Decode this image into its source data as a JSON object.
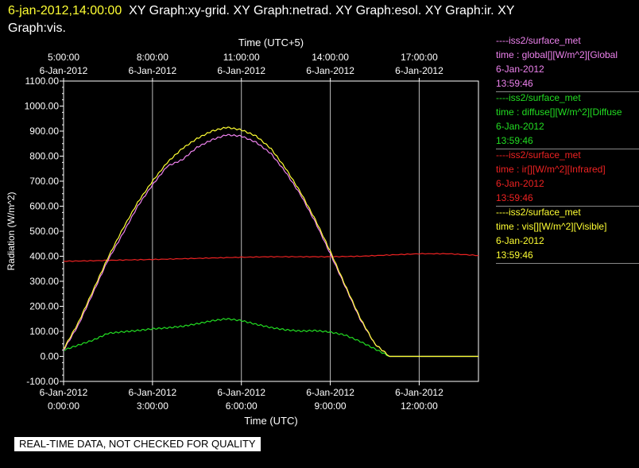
{
  "header": {
    "timestamp": "6-jan-2012,14:00:00",
    "graphs_line1": "XY Graph:xy-grid.  XY Graph:netrad.  XY Graph:esol.  XY Graph:ir.  XY",
    "graphs_line2": "Graph:vis."
  },
  "legend": [
    {
      "source": "----iss2/surface_met",
      "field": "time : global[][W/m^2][Global",
      "date": "6-Jan-2012",
      "time": "13:59:46",
      "color": "#ee82ee"
    },
    {
      "source": "----iss2/surface_met",
      "field": "time : diffuse[][W/m^2][Diffuse",
      "date": "6-Jan-2012",
      "time": "13:59:46",
      "color": "#22dd22"
    },
    {
      "source": "----iss2/surface_met",
      "field": "time : ir[][W/m^2][Infrared]",
      "date": "6-Jan-2012",
      "time": "13:59:46",
      "color": "#ee2222"
    },
    {
      "source": "----iss2/surface_met",
      "field": "time : vis[][W/m^2][Visible]",
      "date": "6-Jan-2012",
      "time": "13:59:46",
      "color": "#ffff33"
    }
  ],
  "banner": "REAL-TIME DATA, NOT CHECKED FOR QUALITY",
  "chart_data": {
    "type": "line",
    "ylabel": "Radiation (W/m^2)",
    "xlabel": "Time (UTC)",
    "top_xlabel": "Time (UTC+5)",
    "ylim": [
      -100,
      1100
    ],
    "y_ticks": [
      -100,
      0,
      100,
      200,
      300,
      400,
      500,
      600,
      700,
      800,
      900,
      1000,
      1100
    ],
    "y_tick_labels": [
      "-100.00",
      "0.00",
      "100.00",
      "200.00",
      "300.00",
      "400.00",
      "500.00",
      "600.00",
      "700.00",
      "800.00",
      "900.00",
      "1000.00",
      "1100.00"
    ],
    "xlim_hours_utc": [
      0,
      14
    ],
    "bottom_ticks": [
      {
        "h": 0,
        "date": "6-Jan-2012",
        "time": "0:00:00"
      },
      {
        "h": 3,
        "date": "6-Jan-2012",
        "time": "3:00:00"
      },
      {
        "h": 6,
        "date": "6-Jan-2012",
        "time": "6:00:00"
      },
      {
        "h": 9,
        "date": "6-Jan-2012",
        "time": "9:00:00"
      },
      {
        "h": 12,
        "date": "6-Jan-2012",
        "time": "12:00:00"
      }
    ],
    "top_ticks": [
      {
        "h": 0,
        "time": "5:00:00",
        "date": "6-Jan-2012"
      },
      {
        "h": 3,
        "time": "8:00:00",
        "date": "6-Jan-2012"
      },
      {
        "h": 6,
        "time": "11:00:00",
        "date": "6-Jan-2012"
      },
      {
        "h": 9,
        "time": "14:00:00",
        "date": "6-Jan-2012"
      },
      {
        "h": 12,
        "time": "17:00:00",
        "date": "6-Jan-2012"
      }
    ],
    "grid": "vertical",
    "series": [
      {
        "name": "global",
        "color": "#ee82ee",
        "x": [
          0,
          0.5,
          1,
          1.5,
          2,
          2.5,
          3,
          3.5,
          4,
          4.5,
          5,
          5.5,
          6,
          6.5,
          7,
          7.5,
          8,
          8.5,
          9,
          9.5,
          10,
          10.5,
          11,
          11.5,
          12,
          12.5,
          13,
          13.5,
          14
        ],
        "y": [
          25,
          125,
          255,
          385,
          490,
          600,
          685,
          760,
          785,
          835,
          865,
          885,
          880,
          855,
          810,
          735,
          645,
          535,
          410,
          280,
          150,
          50,
          0,
          0,
          0,
          0,
          0,
          0,
          0
        ]
      },
      {
        "name": "vis",
        "color": "#ffff33",
        "x": [
          0,
          0.5,
          1,
          1.5,
          2,
          2.5,
          3,
          3.5,
          4,
          4.5,
          5,
          5.5,
          6,
          6.5,
          7,
          7.5,
          8,
          8.5,
          9,
          9.5,
          10,
          10.5,
          11,
          11.5,
          12,
          12.5,
          13,
          13.5,
          14
        ],
        "y": [
          30,
          135,
          265,
          395,
          510,
          615,
          700,
          775,
          830,
          870,
          900,
          915,
          905,
          880,
          830,
          750,
          655,
          545,
          420,
          285,
          155,
          50,
          0,
          0,
          0,
          0,
          0,
          0,
          0
        ]
      },
      {
        "name": "ir",
        "color": "#ee2222",
        "x": [
          0,
          1,
          2,
          3,
          4,
          5,
          6,
          7,
          8,
          9,
          10,
          11,
          12,
          13,
          14
        ],
        "y": [
          380,
          382,
          385,
          387,
          390,
          393,
          396,
          398,
          398,
          398,
          400,
          405,
          410,
          410,
          403
        ]
      },
      {
        "name": "diffuse",
        "color": "#22dd22",
        "x": [
          0,
          0.5,
          1,
          1.5,
          2,
          2.5,
          3,
          3.5,
          4,
          4.5,
          5,
          5.5,
          6,
          6.5,
          7,
          7.5,
          8,
          8.5,
          9,
          9.5,
          10,
          10.5,
          11,
          11.5,
          12,
          12.5,
          13,
          13.5,
          14
        ],
        "y": [
          25,
          45,
          65,
          92,
          98,
          103,
          110,
          114,
          120,
          130,
          142,
          150,
          143,
          128,
          115,
          106,
          101,
          103,
          97,
          85,
          60,
          30,
          0,
          0,
          0,
          0,
          0,
          0,
          0
        ]
      }
    ]
  }
}
